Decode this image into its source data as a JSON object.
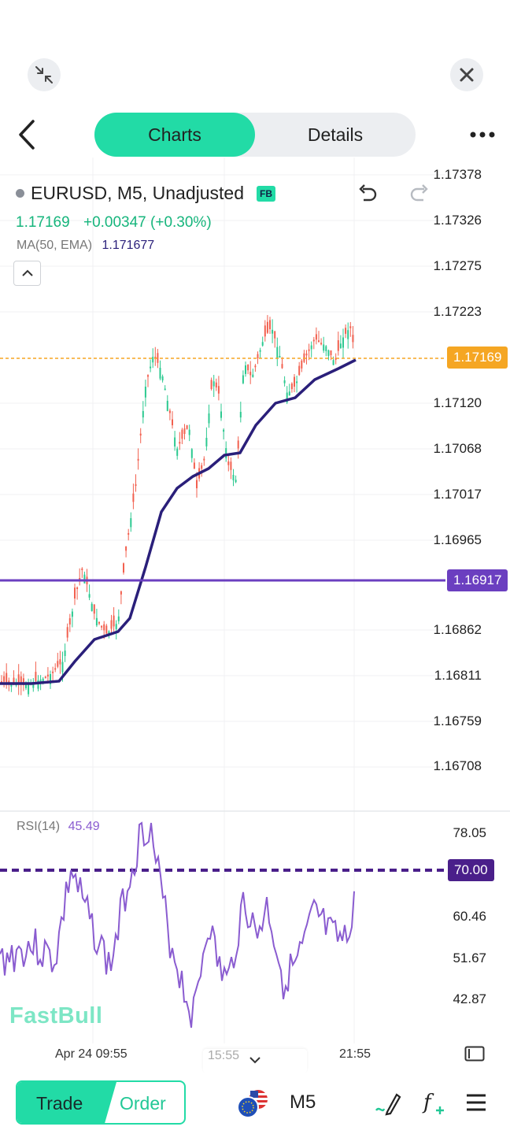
{
  "header": {
    "tabs": [
      {
        "label": "Charts",
        "active": true
      },
      {
        "label": "Details",
        "active": false
      }
    ],
    "icons": [
      "minimize-icon",
      "close-icon",
      "back-icon",
      "more-icon"
    ]
  },
  "symbol": {
    "title": "EURUSD, M5, Unadjusted",
    "badge": "FB",
    "price": "1.17169",
    "change": "+0.00347 (+0.30%)",
    "indicator_name": "MA(50, EMA)",
    "indicator_value": "1.171677"
  },
  "price_axis": [
    "1.17378",
    "1.17326",
    "1.17275",
    "1.17223",
    "1.17120",
    "1.17068",
    "1.17017",
    "1.16965",
    "1.16862",
    "1.16811",
    "1.16759",
    "1.16708"
  ],
  "price_tags": {
    "current": "1.17169",
    "line": "1.16917"
  },
  "rsi": {
    "name": "RSI(14)",
    "value": "45.49",
    "axis": [
      "78.05",
      "60.46",
      "51.67",
      "42.87"
    ],
    "level": "70.00"
  },
  "time_axis": {
    "left": "Apr 24 09:55",
    "middle": "15:55",
    "right": "21:55"
  },
  "watermark": "FastBull",
  "bottom": {
    "trade": "Trade",
    "order": "Order",
    "timeframe": "M5"
  },
  "colors": {
    "accent": "#22dba6",
    "up": "#2cc990",
    "down": "#f2604f",
    "ma": "#2a1f7a",
    "hline": "#6b3fc0",
    "current": "#f5a623",
    "rsi": "#8a5cd0"
  }
}
